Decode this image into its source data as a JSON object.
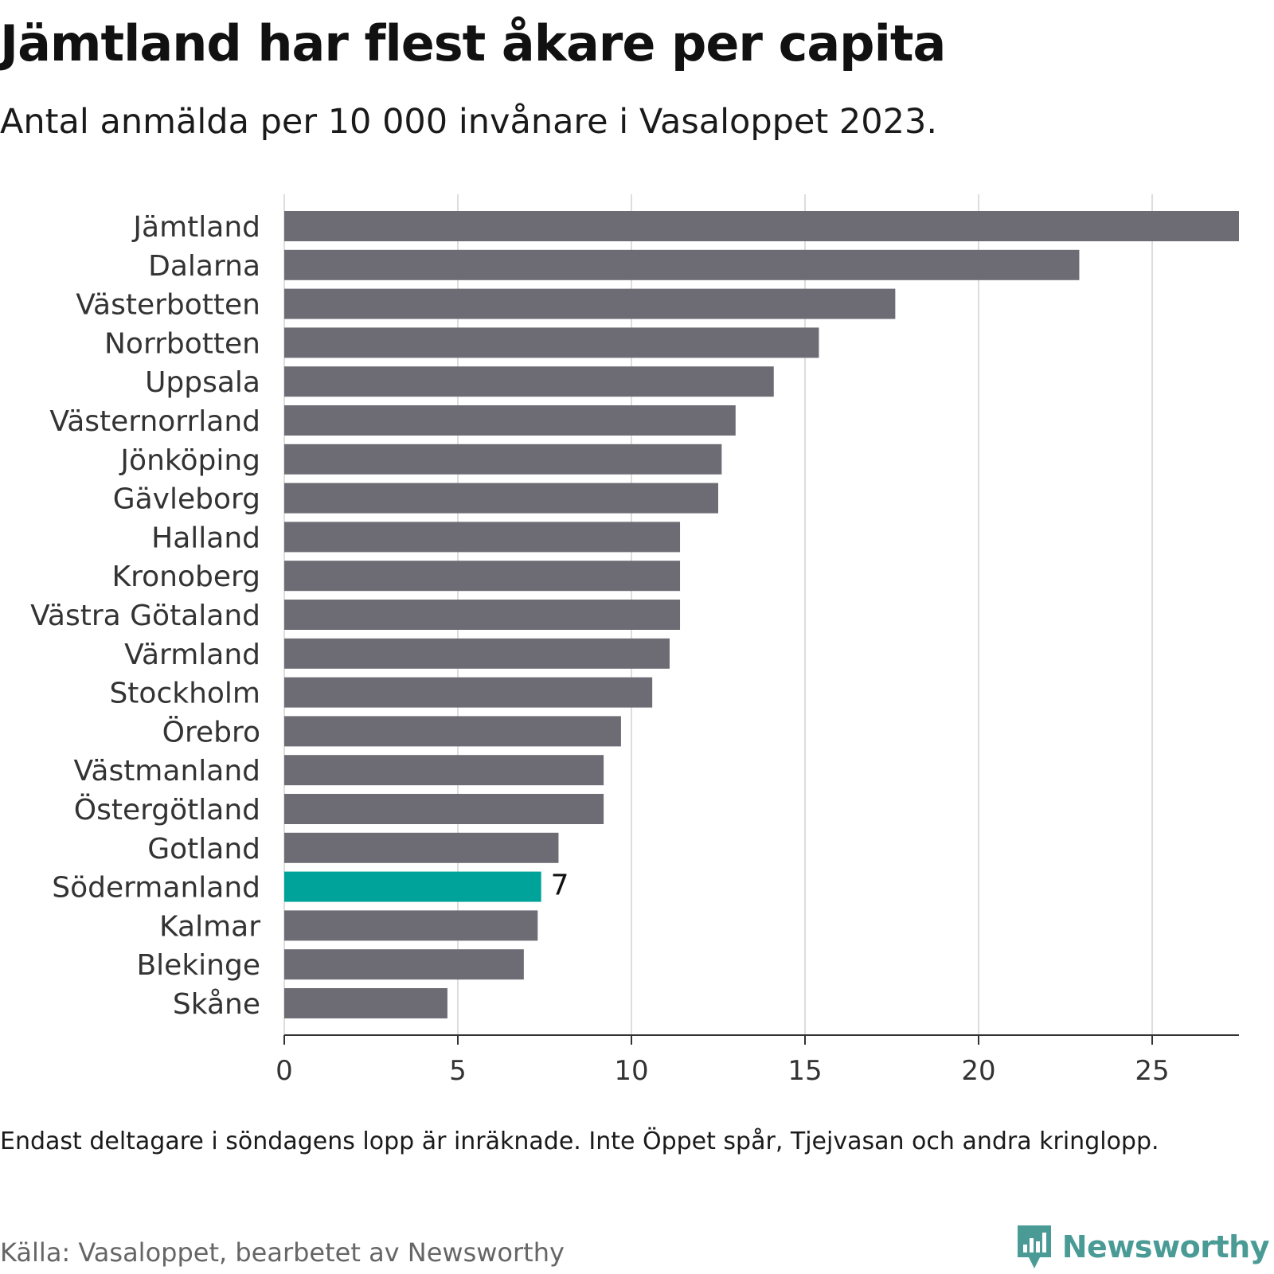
{
  "title": "Jämtland har flest åkare per capita",
  "subtitle": "Antal anmälda per 10 000 invånare i Vasaloppet 2023.",
  "note": "Endast deltagare i söndagens lopp är inräknade. Inte Öppet spår, Tjejvasan och andra kringlopp.",
  "source": "Källa: Vasaloppet, bearbetet av Newsworthy",
  "brand": {
    "name": "Newsworthy",
    "icon": "newsworthy-logo-icon",
    "color": "#4a9b95"
  },
  "colors": {
    "bar": "#6d6c75",
    "highlight": "#00a39a",
    "grid": "#dddddd",
    "axis": "#333333",
    "label": "#333333"
  },
  "chart_data": {
    "type": "bar",
    "orientation": "horizontal",
    "categories": [
      "Jämtland",
      "Dalarna",
      "Västerbotten",
      "Norrbotten",
      "Uppsala",
      "Västernorrland",
      "Jönköping",
      "Gävleborg",
      "Halland",
      "Kronoberg",
      "Västra Götaland",
      "Värmland",
      "Stockholm",
      "Örebro",
      "Västmanland",
      "Östergötland",
      "Gotland",
      "Södermanland",
      "Kalmar",
      "Blekinge",
      "Skåne"
    ],
    "values": [
      27.5,
      22.9,
      17.6,
      15.4,
      14.1,
      13.0,
      12.6,
      12.5,
      11.4,
      11.4,
      11.4,
      11.1,
      10.6,
      9.7,
      9.2,
      9.2,
      7.9,
      7.4,
      7.3,
      6.9,
      4.7
    ],
    "highlight": {
      "category": "Södermanland",
      "label": "7"
    },
    "xticks": [
      "0",
      "5",
      "10",
      "15",
      "20",
      "25"
    ],
    "xlim": [
      0,
      27.5
    ],
    "grid": true,
    "legend": "none"
  }
}
